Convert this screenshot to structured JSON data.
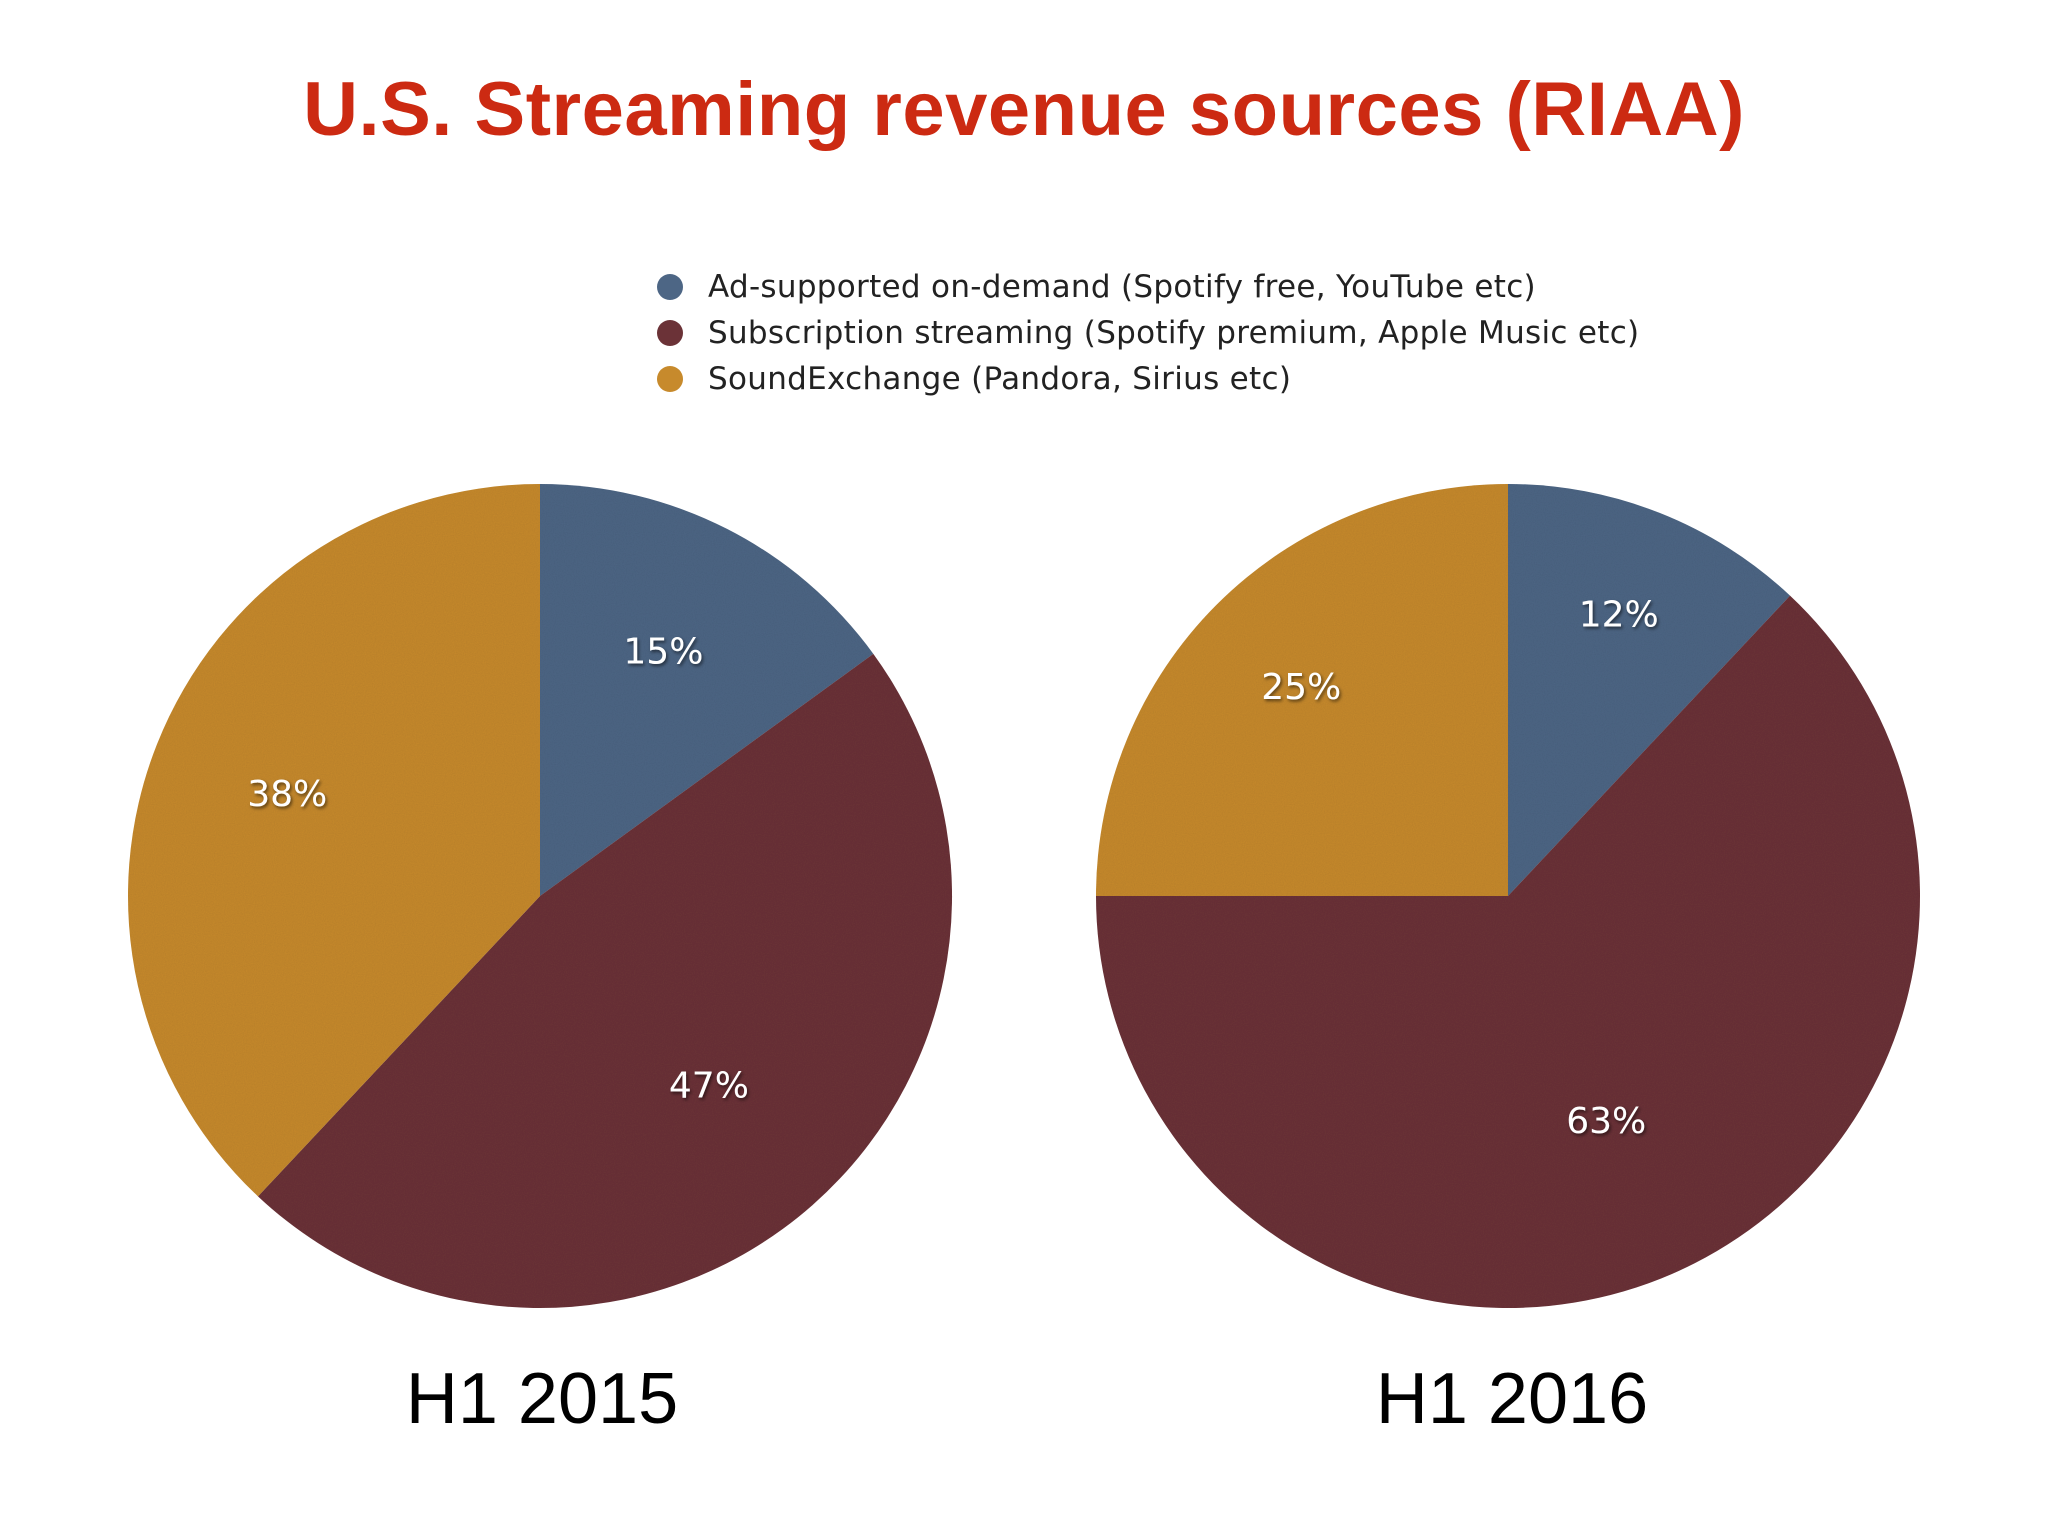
{
  "title": "U.S. Streaming revenue sources (RIAA)",
  "colors": {
    "title": "#cc2a12",
    "ad_supported": "#4d6685",
    "subscription": "#6b3237",
    "soundexchange": "#c78a2c"
  },
  "legend": [
    {
      "label": "Ad-supported on-demand (Spotify free, YouTube etc)",
      "color": "#4d6685",
      "icon": "circle-bullet"
    },
    {
      "label": "Subscription streaming (Spotify premium, Apple Music etc)",
      "color": "#6b3237",
      "icon": "circle-bullet"
    },
    {
      "label": "SoundExchange (Pandora, Sirius etc)",
      "color": "#c78a2c",
      "icon": "circle-bullet"
    }
  ],
  "chart_data": [
    {
      "type": "pie",
      "title": "H1 2015",
      "categories": [
        "Ad-supported on-demand",
        "Subscription streaming",
        "SoundExchange"
      ],
      "values": [
        15,
        47,
        38
      ],
      "labels": [
        "15%",
        "47%",
        "38%"
      ],
      "colors": [
        "#4d6685",
        "#6b3237",
        "#c78a2c"
      ],
      "start_angle": "12 o'clock",
      "direction": "clockwise"
    },
    {
      "type": "pie",
      "title": "H1 2016",
      "categories": [
        "Ad-supported on-demand",
        "Subscription streaming",
        "SoundExchange"
      ],
      "values": [
        12,
        63,
        25
      ],
      "labels": [
        "12%",
        "63%",
        "25%"
      ],
      "colors": [
        "#4d6685",
        "#6b3237",
        "#c78a2c"
      ],
      "start_angle": "12 o'clock",
      "direction": "clockwise"
    }
  ]
}
